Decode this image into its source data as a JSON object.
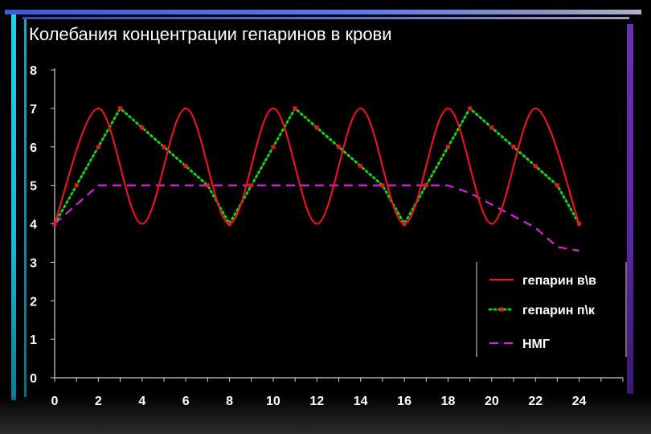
{
  "chart_data": {
    "type": "line",
    "title": "Колебания концентрации гепаринов в крови",
    "xlabel": "",
    "ylabel": "",
    "xlim": [
      0,
      26
    ],
    "ylim": [
      0,
      8
    ],
    "x_ticks": [
      0,
      2,
      4,
      6,
      8,
      10,
      12,
      14,
      16,
      18,
      20,
      22,
      24
    ],
    "y_ticks": [
      0,
      1,
      2,
      3,
      4,
      5,
      6,
      7,
      8
    ],
    "grid": false,
    "legend_position": "bottom-right",
    "series": [
      {
        "name": "гепарин в\\в",
        "color": "#e8141e",
        "style": "solid",
        "markers": false,
        "smooth": true,
        "x": [
          0,
          2,
          4,
          6,
          8,
          10,
          12,
          14,
          16,
          18,
          20,
          22,
          24
        ],
        "y": [
          4,
          7,
          4,
          7,
          4,
          7,
          4,
          7,
          4,
          7,
          4,
          7,
          4
        ]
      },
      {
        "name": "гепарин п\\к",
        "color": "#19d219",
        "marker_color": "#e8141e",
        "style": "dotted",
        "markers": true,
        "x": [
          0,
          1,
          2,
          3,
          4,
          5,
          6,
          7,
          8,
          9,
          10,
          11,
          12,
          13,
          14,
          15,
          16,
          17,
          18,
          19,
          20,
          21,
          22,
          23,
          24
        ],
        "y": [
          4,
          5,
          6,
          7,
          6.5,
          6,
          5.5,
          5,
          4,
          5,
          6,
          7,
          6.5,
          6,
          5.5,
          5,
          4,
          5,
          6,
          7,
          6.5,
          6,
          5.5,
          5,
          4
        ]
      },
      {
        "name": "НМГ",
        "color": "#e020e0",
        "style": "dashed",
        "markers": false,
        "x": [
          0,
          1,
          2,
          3,
          4,
          5,
          6,
          7,
          8,
          9,
          10,
          11,
          12,
          13,
          14,
          15,
          16,
          17,
          18,
          19,
          20,
          21,
          22,
          23,
          24
        ],
        "y": [
          4,
          4.5,
          5,
          5,
          5,
          5,
          5,
          5,
          5,
          5,
          5,
          5,
          5,
          5,
          5,
          5,
          5,
          5,
          5,
          4.8,
          4.5,
          4.2,
          3.9,
          3.4,
          3.3
        ]
      }
    ]
  }
}
